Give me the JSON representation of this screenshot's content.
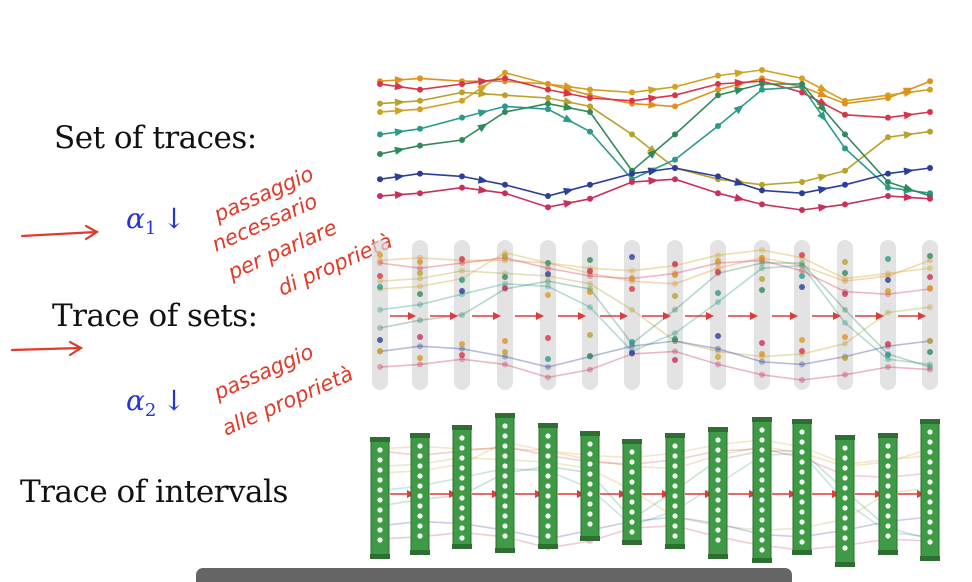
{
  "labels": {
    "set_of_traces": "Set of traces:",
    "trace_of_sets": "Trace of sets:",
    "trace_of_intervals": "Trace of intervals"
  },
  "alphas": {
    "alpha1": {
      "symbol": "α",
      "index": "1",
      "arrow": "↓"
    },
    "alpha2": {
      "symbol": "α",
      "index": "2",
      "arrow": "↓"
    }
  },
  "handwriting": {
    "note1": [
      "passaggio",
      "necessario",
      "per parlare",
      "di proprietà"
    ],
    "note2": [
      "passaggio",
      "alle proprietà"
    ]
  },
  "colors": {
    "alpha": "#2a34d6",
    "ink_red": "#e03a2a",
    "interval_green": "#3f9a45",
    "set_grey": "#d7d7d7",
    "arrow_red": "#e03a3a"
  },
  "traces": [
    {
      "name": "gold",
      "color": "#d4a020"
    },
    {
      "name": "orange",
      "color": "#e0901c"
    },
    {
      "name": "red",
      "color": "#d8344a"
    },
    {
      "name": "olive",
      "color": "#b8a22a"
    },
    {
      "name": "teal",
      "color": "#2a9a8a"
    },
    {
      "name": "green",
      "color": "#2e8a5a"
    },
    {
      "name": "blue",
      "color": "#2a3e9a"
    },
    {
      "name": "crimson",
      "color": "#c8305a"
    }
  ]
}
